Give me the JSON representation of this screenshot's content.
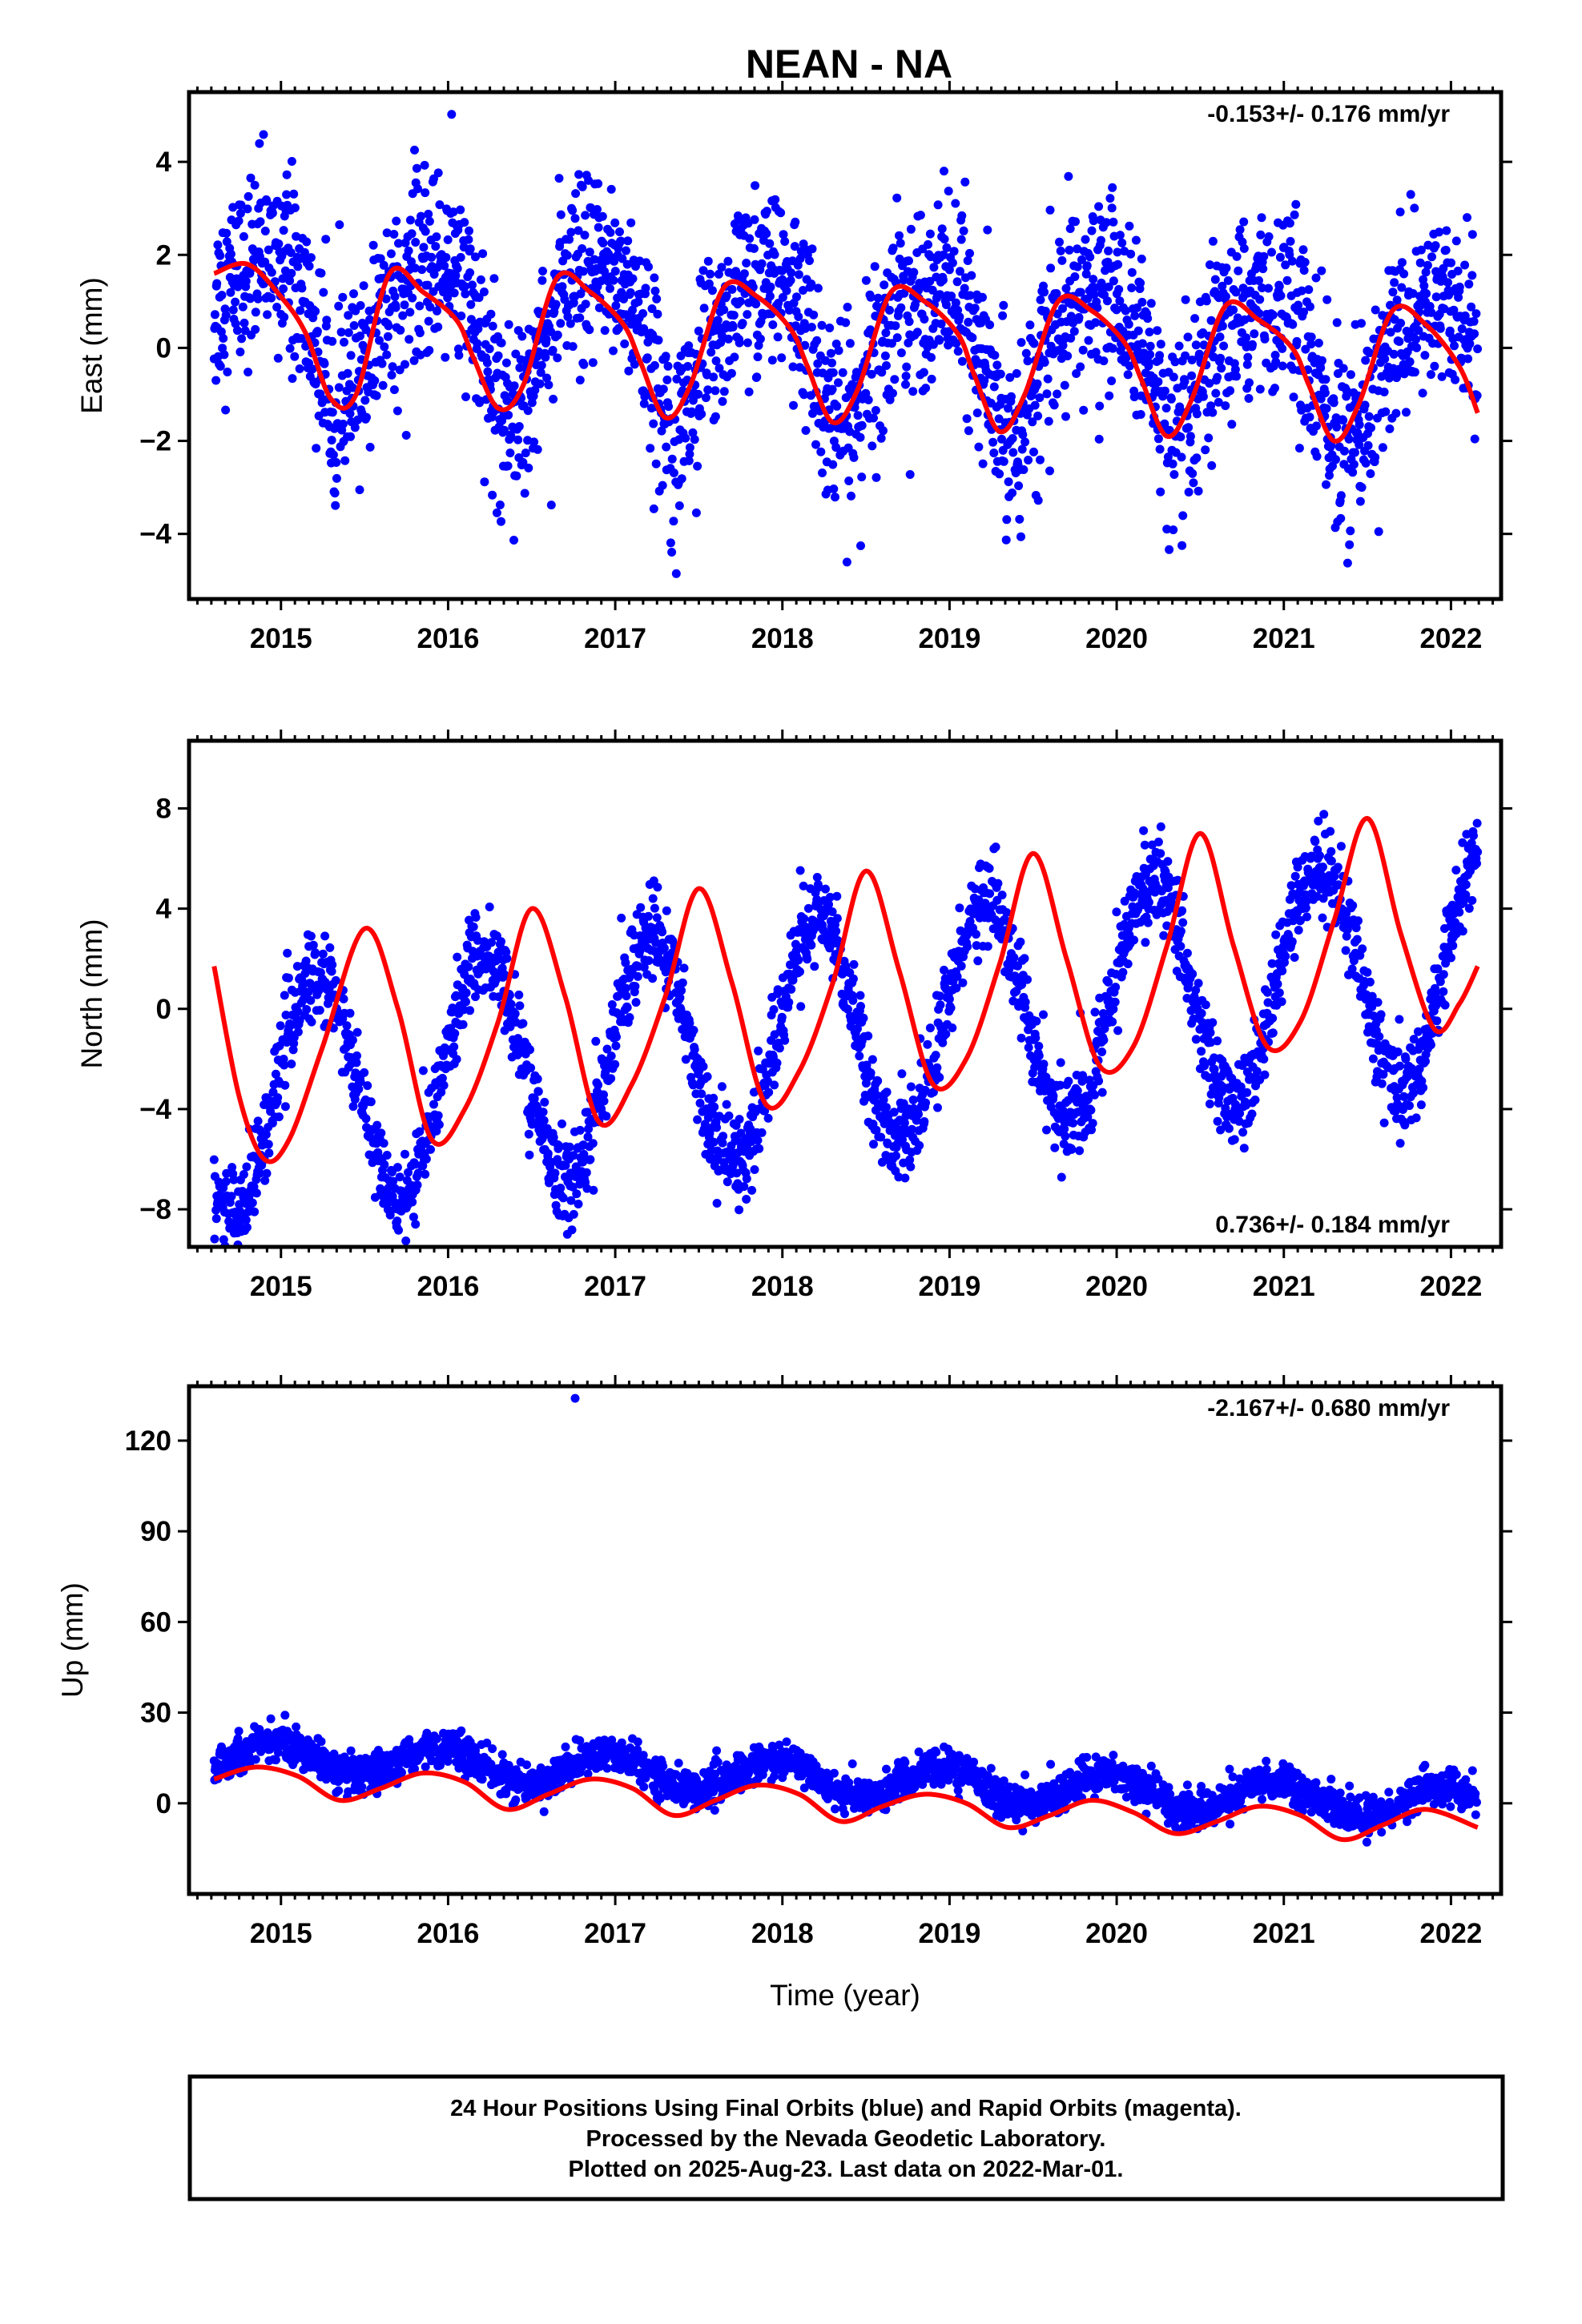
{
  "title": "NEAN - NA",
  "footer": {
    "line1": "24 Hour Positions Using Final Orbits (blue) and Rapid Orbits (magenta).",
    "line2": "Processed by the Nevada Geodetic Laboratory.",
    "line3": "Plotted on 2025-Aug-23. Last data on 2022-Mar-01."
  },
  "colors": {
    "data": "#0000ff",
    "fit": "#ff0000",
    "frame": "#000000"
  },
  "chart_data": [
    {
      "type": "scatter",
      "ylabel": "East (mm)",
      "xlabel": "",
      "xlim": [
        2014.45,
        2022.3
      ],
      "ylim": [
        -5.4,
        5.5
      ],
      "xticks": [
        2015,
        2016,
        2017,
        2018,
        2019,
        2020,
        2021,
        2022
      ],
      "yticks": [
        4,
        2,
        0,
        -2,
        -4
      ],
      "ytick_labels": [
        "4",
        "2",
        "0",
        "−2",
        "−4"
      ],
      "rate_label": "-0.153+/- 0.176 mm/yr",
      "rate_position": "top-right",
      "data_span": [
        2014.6,
        2022.16
      ],
      "model": {
        "offset": 0.25,
        "rate": -0.153,
        "annual_amp": 1.5,
        "annual_phase": 2.3,
        "semi_amp": 0.35,
        "semi_phase": 0.4,
        "noise": 1.0
      },
      "series": [
        {
          "name": "24 Hour Positions (blue)",
          "kind": "points"
        },
        {
          "name": "fit",
          "kind": "line",
          "x": [
            2014.6,
            2014.8,
            2015.0,
            2015.15,
            2015.3,
            2015.45,
            2015.65,
            2015.85,
            2016.05,
            2016.15,
            2016.3,
            2016.45,
            2016.65,
            2016.85,
            2017.05,
            2017.15,
            2017.3,
            2017.45,
            2017.65,
            2017.85,
            2018.05,
            2018.15,
            2018.3,
            2018.45,
            2018.65,
            2018.85,
            2019.05,
            2019.15,
            2019.3,
            2019.45,
            2019.65,
            2019.85,
            2020.05,
            2020.15,
            2020.3,
            2020.45,
            2020.65,
            2020.85,
            2021.05,
            2021.15,
            2021.3,
            2021.45,
            2021.65,
            2021.85,
            2022.05,
            2022.16
          ],
          "y": [
            1.6,
            1.8,
            1.1,
            0.3,
            -1.1,
            -1.0,
            1.6,
            1.2,
            0.6,
            -0.2,
            -1.3,
            -0.8,
            1.5,
            1.2,
            0.5,
            -0.3,
            -1.5,
            -0.8,
            1.3,
            1.1,
            0.4,
            -0.4,
            -1.6,
            -0.9,
            1.2,
            1.0,
            0.3,
            -0.6,
            -1.8,
            -1.0,
            1.0,
            0.8,
            0.1,
            -0.7,
            -1.9,
            -1.1,
            0.9,
            0.6,
            0.0,
            -0.8,
            -2.0,
            -1.2,
            0.8,
            0.5,
            -0.4,
            -1.4
          ]
        }
      ]
    },
    {
      "type": "scatter",
      "ylabel": "North (mm)",
      "xlabel": "",
      "xlim": [
        2014.45,
        2022.3
      ],
      "ylim": [
        -9.5,
        10.7
      ],
      "xticks": [
        2015,
        2016,
        2017,
        2018,
        2019,
        2020,
        2021,
        2022
      ],
      "yticks": [
        8,
        4,
        0,
        -4,
        -8
      ],
      "ytick_labels": [
        "8",
        "4",
        "0",
        "−4",
        "−8"
      ],
      "rate_label": "0.736+/- 0.184 mm/yr",
      "rate_position": "bottom-right",
      "data_span": [
        2014.6,
        2022.16
      ],
      "model": {
        "offset": -1.2,
        "rate": 0.736,
        "annual_amp": 4.6,
        "annual_phase": 0.25,
        "semi_amp": 0.0,
        "semi_phase": 0.0,
        "noise": 0.9
      },
      "series": [
        {
          "name": "24 Hour Positions (blue)",
          "kind": "points"
        },
        {
          "name": "fit",
          "kind": "line",
          "x": [
            2014.6,
            2014.75,
            2014.9,
            2015.05,
            2015.25,
            2015.5,
            2015.7,
            2015.9,
            2016.1,
            2016.3,
            2016.5,
            2016.7,
            2016.9,
            2017.1,
            2017.3,
            2017.5,
            2017.7,
            2017.9,
            2018.1,
            2018.3,
            2018.5,
            2018.7,
            2018.9,
            2019.1,
            2019.3,
            2019.5,
            2019.7,
            2019.9,
            2020.1,
            2020.3,
            2020.5,
            2020.7,
            2020.9,
            2021.1,
            2021.3,
            2021.5,
            2021.7,
            2021.9,
            2022.05,
            2022.16
          ],
          "y": [
            1.7,
            -3.5,
            -6.0,
            -5.2,
            -1.5,
            3.2,
            0.0,
            -5.2,
            -4.0,
            -0.5,
            4.0,
            0.5,
            -4.5,
            -3.0,
            0.5,
            4.8,
            1.0,
            -3.8,
            -2.5,
            1.0,
            5.5,
            1.5,
            -3.0,
            -2.0,
            1.8,
            6.2,
            2.0,
            -2.3,
            -1.5,
            2.5,
            7.0,
            2.5,
            -1.5,
            -0.5,
            3.5,
            7.6,
            3.0,
            -0.8,
            0.2,
            1.7
          ]
        }
      ]
    },
    {
      "type": "scatter",
      "ylabel": "Up (mm)",
      "xlabel": "Time (year)",
      "xlim": [
        2014.45,
        2022.3
      ],
      "ylim": [
        -30,
        138
      ],
      "xticks": [
        2015,
        2016,
        2017,
        2018,
        2019,
        2020,
        2021,
        2022
      ],
      "yticks": [
        120,
        90,
        60,
        30,
        0
      ],
      "ytick_labels": [
        "120",
        "90",
        "60",
        "30",
        "0"
      ],
      "rate_label": "-2.167+/- 0.680 mm/yr",
      "rate_position": "top-right",
      "data_span": [
        2014.6,
        2022.16
      ],
      "model": {
        "offset": 8.5,
        "rate": -2.167,
        "annual_amp": 5.5,
        "annual_phase": 1.8,
        "semi_amp": 0.0,
        "semi_phase": 0.0,
        "noise": 3.0
      },
      "outliers": [
        {
          "x": 2016.76,
          "y": 134
        }
      ],
      "series": [
        {
          "name": "24 Hour Positions (blue)",
          "kind": "points"
        },
        {
          "name": "fit",
          "kind": "line",
          "x": [
            2014.6,
            2014.85,
            2015.1,
            2015.35,
            2015.6,
            2015.85,
            2016.1,
            2016.35,
            2016.6,
            2016.85,
            2017.1,
            2017.35,
            2017.6,
            2017.85,
            2018.1,
            2018.35,
            2018.6,
            2018.85,
            2019.1,
            2019.35,
            2019.6,
            2019.85,
            2020.1,
            2020.35,
            2020.6,
            2020.85,
            2021.1,
            2021.35,
            2021.6,
            2021.85,
            2022.16
          ],
          "y": [
            8,
            12,
            9,
            1,
            5,
            10,
            7,
            -2,
            3,
            8,
            5,
            -4,
            1,
            6,
            3,
            -6,
            -1,
            3,
            0,
            -8,
            -4,
            1,
            -3,
            -10,
            -6,
            -1,
            -4,
            -12,
            -7,
            -2,
            -8
          ]
        }
      ]
    }
  ]
}
